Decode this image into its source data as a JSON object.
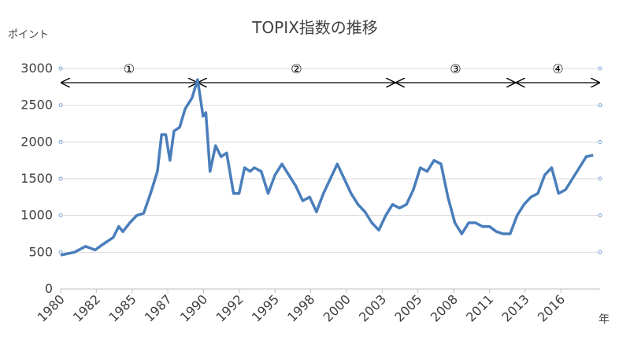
{
  "chart_data": {
    "type": "line",
    "title": "TOPIX指数の推移",
    "y_label": "ポイント",
    "x_label": "年",
    "xlim": [
      1980,
      2019
    ],
    "ylim": [
      0,
      3000
    ],
    "yticks": [
      0,
      500,
      1000,
      1500,
      2000,
      2500,
      3000
    ],
    "xticks": [
      {
        "value": 1980,
        "label": "1980"
      },
      {
        "value": 1982.58,
        "label": "1982"
      },
      {
        "value": 1985.17,
        "label": "1985"
      },
      {
        "value": 1987.75,
        "label": "1987"
      },
      {
        "value": 1990.33,
        "label": "1990"
      },
      {
        "value": 1992.92,
        "label": "1992"
      },
      {
        "value": 1995.5,
        "label": "1995"
      },
      {
        "value": 1998.08,
        "label": "1998"
      },
      {
        "value": 2000.67,
        "label": "2000"
      },
      {
        "value": 2003.25,
        "label": "2003"
      },
      {
        "value": 2005.83,
        "label": "2005"
      },
      {
        "value": 2008.42,
        "label": "2008"
      },
      {
        "value": 2011,
        "label": "2011"
      },
      {
        "value": 2013.58,
        "label": "2013"
      },
      {
        "value": 2016.17,
        "label": "2016"
      }
    ],
    "grid": true,
    "annotations": [
      {
        "text": "①",
        "x": [
          1980,
          1989.9
        ]
      },
      {
        "text": "②",
        "x": [
          1989.9,
          2004.2
        ]
      },
      {
        "text": "③",
        "x": [
          2004.2,
          2012.9
        ]
      },
      {
        "text": "④",
        "x": [
          2012.9,
          2019
        ]
      }
    ],
    "series": [
      {
        "color": "#4a7ebb",
        "x": [
          1980,
          1981,
          1981.8,
          1982.5,
          1983,
          1983.8,
          1984.2,
          1984.5,
          1985,
          1985.5,
          1986,
          1986.5,
          1987,
          1987.3,
          1987.6,
          1987.9,
          1988.2,
          1988.6,
          1989,
          1989.5,
          1989.9,
          1990.3,
          1990.5,
          1990.8,
          1991.2,
          1991.6,
          1992,
          1992.5,
          1992.9,
          1993.3,
          1993.7,
          1994,
          1994.5,
          1995,
          1995.5,
          1996,
          1996.5,
          1997,
          1997.5,
          1998,
          1998.5,
          1999,
          1999.5,
          2000,
          2000.5,
          2001,
          2001.5,
          2002,
          2002.5,
          2003,
          2003.5,
          2004,
          2004.5,
          2005,
          2005.5,
          2006,
          2006.5,
          2007,
          2007.5,
          2008,
          2008.5,
          2009,
          2009.5,
          2010,
          2010.5,
          2011,
          2011.5,
          2012,
          2012.5,
          2013,
          2013.5,
          2014,
          2014.5,
          2015,
          2015.5,
          2016,
          2016.5,
          2017,
          2017.5,
          2018,
          2018.5
        ],
        "values": [
          460,
          500,
          580,
          530,
          600,
          700,
          850,
          780,
          900,
          1000,
          1030,
          1300,
          1600,
          2100,
          2100,
          1750,
          2150,
          2200,
          2450,
          2600,
          2850,
          2350,
          2400,
          1600,
          1950,
          1800,
          1850,
          1300,
          1300,
          1650,
          1600,
          1650,
          1600,
          1300,
          1550,
          1700,
          1550,
          1400,
          1200,
          1250,
          1050,
          1300,
          1500,
          1700,
          1500,
          1300,
          1150,
          1050,
          900,
          800,
          1000,
          1150,
          1100,
          1150,
          1350,
          1650,
          1600,
          1750,
          1700,
          1250,
          900,
          750,
          900,
          900,
          850,
          850,
          780,
          750,
          750,
          1000,
          1150,
          1250,
          1300,
          1550,
          1650,
          1300,
          1350,
          1500,
          1650,
          1800,
          1820
        ]
      }
    ]
  }
}
